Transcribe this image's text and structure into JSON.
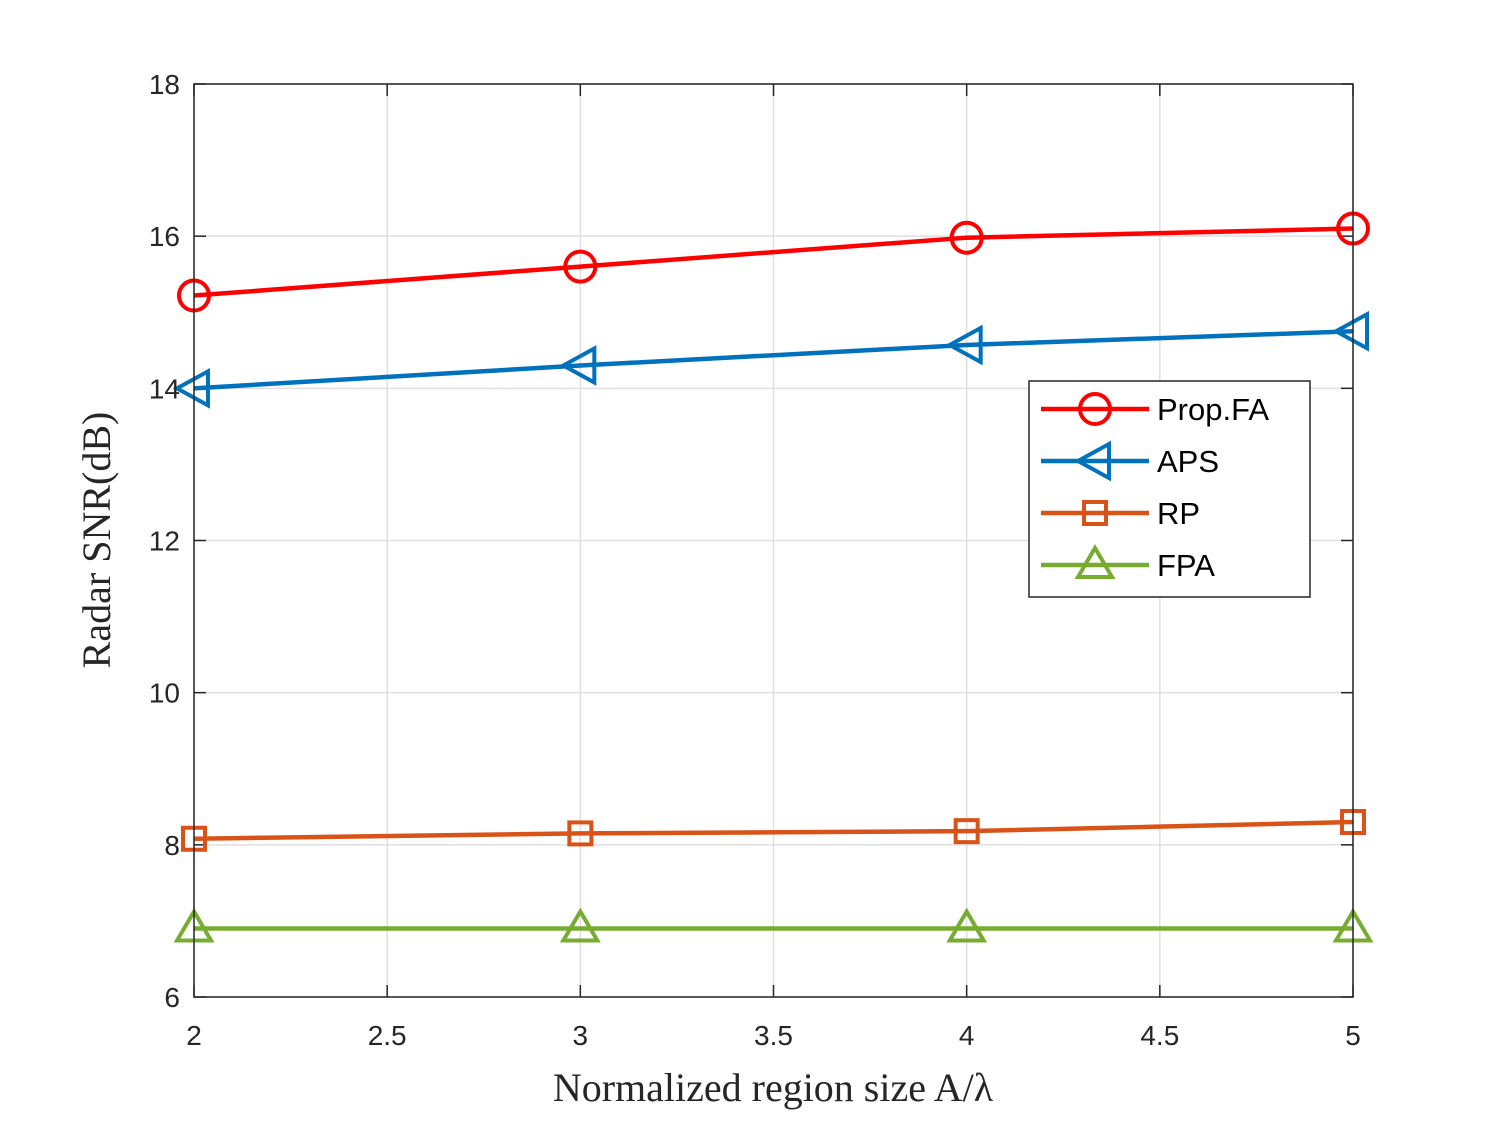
{
  "chart_data": {
    "type": "line",
    "title": "",
    "xlabel": "Normalized region size A/λ",
    "ylabel": "Radar SNR(dB)",
    "xlim": [
      2,
      5
    ],
    "ylim": [
      6,
      18
    ],
    "xticks": [
      2,
      2.5,
      3,
      3.5,
      4,
      4.5,
      5
    ],
    "xtick_labels": [
      "2",
      "2.5",
      "3",
      "3.5",
      "4",
      "4.5",
      "5"
    ],
    "yticks": [
      6,
      8,
      10,
      12,
      14,
      16,
      18
    ],
    "ytick_labels": [
      "6",
      "8",
      "10",
      "12",
      "14",
      "16",
      "18"
    ],
    "grid": true,
    "legend_position": "right",
    "x": [
      2,
      3,
      4,
      5
    ],
    "series": [
      {
        "name": "Prop.FA",
        "values": [
          15.22,
          15.6,
          15.98,
          16.1
        ],
        "color": "#ff0000",
        "marker": "circle"
      },
      {
        "name": "APS",
        "values": [
          14.0,
          14.3,
          14.57,
          14.75
        ],
        "color": "#0072bd",
        "marker": "triangle-left"
      },
      {
        "name": "RP",
        "values": [
          8.08,
          8.15,
          8.18,
          8.3
        ],
        "color": "#d95319",
        "marker": "square"
      },
      {
        "name": "FPA",
        "values": [
          6.9,
          6.9,
          6.9,
          6.9
        ],
        "color": "#77ac30",
        "marker": "triangle-up"
      }
    ]
  }
}
